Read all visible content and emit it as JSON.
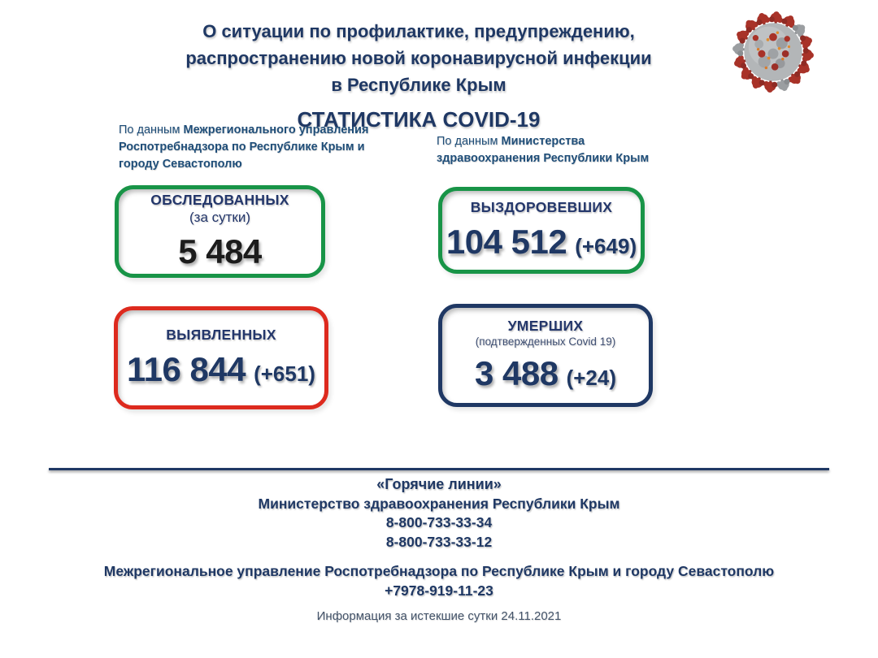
{
  "header": {
    "title_line1": "О ситуации по профилактике, предупреждению,",
    "title_line2": "распространению новой коронавирусной инфекции",
    "title_line3": "в Республике Крым",
    "subtitle": "СТАТИСТИКА COVID-19"
  },
  "sources": {
    "left": {
      "prefix": "По данным",
      "org": "Межрегионального управления Роспотребнадзора по Республике Крым и городу Севастополю"
    },
    "right": {
      "prefix": "По данным",
      "org": "Министерства здравоохранения Республики Крым"
    }
  },
  "cards": [
    {
      "key": "tested",
      "label": "ОБСЛЕДОВАННЫХ",
      "sublabel": "(за сутки)",
      "value": "5 484",
      "delta": "",
      "border_color": "#189447",
      "value_color": "#1c1c1c"
    },
    {
      "key": "recovered",
      "label": "ВЫЗДОРОВЕВШИХ",
      "sublabel": "",
      "value": "104 512",
      "delta": "(+649)",
      "border_color": "#189447",
      "value_color": "#1f3864"
    },
    {
      "key": "detected",
      "label": "ВЫЯВЛЕННЫХ",
      "sublabel": "",
      "value": "116 844",
      "delta": "(+651)",
      "border_color": "#dd2a1e",
      "value_color": "#1f3864"
    },
    {
      "key": "deaths",
      "label": "УМЕРШИХ",
      "sublabel": "(подтвержденных Covid 19)",
      "value": "3 488",
      "delta": "(+24)",
      "border_color": "#1f3864",
      "value_color": "#1f3864"
    }
  ],
  "hotlines": {
    "heading": "«Горячие линии»",
    "ministry_name": "Министерство здравоохранения Республики Крым",
    "ministry_phone1": "8-800-733-33-34",
    "ministry_phone2": "8-800-733-33-12",
    "rospotrebnadzor_name": "Межрегиональное управление Роспотребнадзора по Республике Крым и городу Севастополю",
    "rospotrebnadzor_phone": "+7978-919-11-23"
  },
  "footer": {
    "date_note": "Информация за истекшие сутки 24.11.2021"
  },
  "icons": {
    "virus": "coronavirus-icon"
  },
  "colors": {
    "navy": "#1f3864",
    "source_navy": "#1f4e79",
    "green": "#189447",
    "red": "#dd2a1e",
    "muted": "#44546a",
    "black_value": "#1c1c1c",
    "virus_red": "#a83228",
    "virus_gray": "#b3b6b8",
    "virus_orange": "#e08b2d",
    "background": "#ffffff"
  }
}
